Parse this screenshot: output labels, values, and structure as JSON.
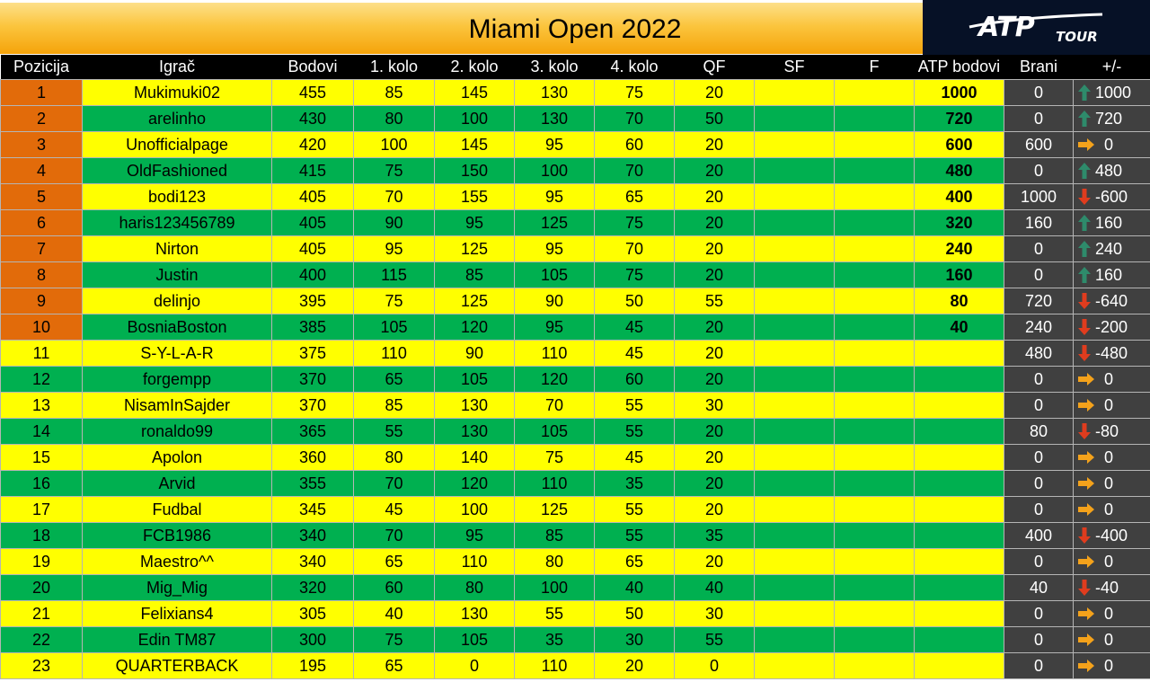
{
  "title": "Miami Open 2022",
  "logo": {
    "main": "ATP",
    "sub": "TOUR"
  },
  "headers": [
    "Pozicija",
    "Igrač",
    "Bodovi",
    "1. kolo",
    "2. kolo",
    "3. kolo",
    "4. kolo",
    "QF",
    "SF",
    "F",
    "ATP bodovi",
    "Brani",
    "+/-"
  ],
  "colors": {
    "yellow": "#ffff00",
    "green": "#00b050",
    "orange": "#e26b0a",
    "dark": "#404040",
    "header": "#000000",
    "arrow_up": "#2e8b6b",
    "arrow_down": "#e03c1e",
    "arrow_right": "#f4a21b"
  },
  "rows": [
    {
      "pos": "1",
      "player": "Mukimuki02",
      "bodovi": "455",
      "k1": "85",
      "k2": "145",
      "k3": "130",
      "k4": "75",
      "qf": "20",
      "sf": "",
      "f": "",
      "atp": "1000",
      "brani": "0",
      "diff": "1000",
      "trend": "up"
    },
    {
      "pos": "2",
      "player": "arelinho",
      "bodovi": "430",
      "k1": "80",
      "k2": "100",
      "k3": "130",
      "k4": "70",
      "qf": "50",
      "sf": "",
      "f": "",
      "atp": "720",
      "brani": "0",
      "diff": "720",
      "trend": "up"
    },
    {
      "pos": "3",
      "player": "Unofficialpage",
      "bodovi": "420",
      "k1": "100",
      "k2": "145",
      "k3": "95",
      "k4": "60",
      "qf": "20",
      "sf": "",
      "f": "",
      "atp": "600",
      "brani": "600",
      "diff": "0",
      "trend": "right"
    },
    {
      "pos": "4",
      "player": "OldFashioned",
      "bodovi": "415",
      "k1": "75",
      "k2": "150",
      "k3": "100",
      "k4": "70",
      "qf": "20",
      "sf": "",
      "f": "",
      "atp": "480",
      "brani": "0",
      "diff": "480",
      "trend": "up"
    },
    {
      "pos": "5",
      "player": "bodi123",
      "bodovi": "405",
      "k1": "70",
      "k2": "155",
      "k3": "95",
      "k4": "65",
      "qf": "20",
      "sf": "",
      "f": "",
      "atp": "400",
      "brani": "1000",
      "diff": "-600",
      "trend": "down"
    },
    {
      "pos": "6",
      "player": "haris123456789",
      "bodovi": "405",
      "k1": "90",
      "k2": "95",
      "k3": "125",
      "k4": "75",
      "qf": "20",
      "sf": "",
      "f": "",
      "atp": "320",
      "brani": "160",
      "diff": "160",
      "trend": "up"
    },
    {
      "pos": "7",
      "player": "Nirton",
      "bodovi": "405",
      "k1": "95",
      "k2": "125",
      "k3": "95",
      "k4": "70",
      "qf": "20",
      "sf": "",
      "f": "",
      "atp": "240",
      "brani": "0",
      "diff": "240",
      "trend": "up"
    },
    {
      "pos": "8",
      "player": "Justin",
      "bodovi": "400",
      "k1": "115",
      "k2": "85",
      "k3": "105",
      "k4": "75",
      "qf": "20",
      "sf": "",
      "f": "",
      "atp": "160",
      "brani": "0",
      "diff": "160",
      "trend": "up"
    },
    {
      "pos": "9",
      "player": "delinjo",
      "bodovi": "395",
      "k1": "75",
      "k2": "125",
      "k3": "90",
      "k4": "50",
      "qf": "55",
      "sf": "",
      "f": "",
      "atp": "80",
      "brani": "720",
      "diff": "-640",
      "trend": "down"
    },
    {
      "pos": "10",
      "player": "BosniaBoston",
      "bodovi": "385",
      "k1": "105",
      "k2": "120",
      "k3": "95",
      "k4": "45",
      "qf": "20",
      "sf": "",
      "f": "",
      "atp": "40",
      "brani": "240",
      "diff": "-200",
      "trend": "down"
    },
    {
      "pos": "11",
      "player": "S-Y-L-A-R",
      "bodovi": "375",
      "k1": "110",
      "k2": "90",
      "k3": "110",
      "k4": "45",
      "qf": "20",
      "sf": "",
      "f": "",
      "atp": "",
      "brani": "480",
      "diff": "-480",
      "trend": "down"
    },
    {
      "pos": "12",
      "player": "forgempp",
      "bodovi": "370",
      "k1": "65",
      "k2": "105",
      "k3": "120",
      "k4": "60",
      "qf": "20",
      "sf": "",
      "f": "",
      "atp": "",
      "brani": "0",
      "diff": "0",
      "trend": "right"
    },
    {
      "pos": "13",
      "player": "NisamInSajder",
      "bodovi": "370",
      "k1": "85",
      "k2": "130",
      "k3": "70",
      "k4": "55",
      "qf": "30",
      "sf": "",
      "f": "",
      "atp": "",
      "brani": "0",
      "diff": "0",
      "trend": "right"
    },
    {
      "pos": "14",
      "player": "ronaldo99",
      "bodovi": "365",
      "k1": "55",
      "k2": "130",
      "k3": "105",
      "k4": "55",
      "qf": "20",
      "sf": "",
      "f": "",
      "atp": "",
      "brani": "80",
      "diff": "-80",
      "trend": "down"
    },
    {
      "pos": "15",
      "player": "Apolon",
      "bodovi": "360",
      "k1": "80",
      "k2": "140",
      "k3": "75",
      "k4": "45",
      "qf": "20",
      "sf": "",
      "f": "",
      "atp": "",
      "brani": "0",
      "diff": "0",
      "trend": "right"
    },
    {
      "pos": "16",
      "player": "Arvid",
      "bodovi": "355",
      "k1": "70",
      "k2": "120",
      "k3": "110",
      "k4": "35",
      "qf": "20",
      "sf": "",
      "f": "",
      "atp": "",
      "brani": "0",
      "diff": "0",
      "trend": "right"
    },
    {
      "pos": "17",
      "player": "Fudbal",
      "bodovi": "345",
      "k1": "45",
      "k2": "100",
      "k3": "125",
      "k4": "55",
      "qf": "20",
      "sf": "",
      "f": "",
      "atp": "",
      "brani": "0",
      "diff": "0",
      "trend": "right"
    },
    {
      "pos": "18",
      "player": "FCB1986",
      "bodovi": "340",
      "k1": "70",
      "k2": "95",
      "k3": "85",
      "k4": "55",
      "qf": "35",
      "sf": "",
      "f": "",
      "atp": "",
      "brani": "400",
      "diff": "-400",
      "trend": "down"
    },
    {
      "pos": "19",
      "player": "Maestro^^",
      "bodovi": "340",
      "k1": "65",
      "k2": "110",
      "k3": "80",
      "k4": "65",
      "qf": "20",
      "sf": "",
      "f": "",
      "atp": "",
      "brani": "0",
      "diff": "0",
      "trend": "right"
    },
    {
      "pos": "20",
      "player": "Mig_Mig",
      "bodovi": "320",
      "k1": "60",
      "k2": "80",
      "k3": "100",
      "k4": "40",
      "qf": "40",
      "sf": "",
      "f": "",
      "atp": "",
      "brani": "40",
      "diff": "-40",
      "trend": "down"
    },
    {
      "pos": "21",
      "player": "Felixians4",
      "bodovi": "305",
      "k1": "40",
      "k2": "130",
      "k3": "55",
      "k4": "50",
      "qf": "30",
      "sf": "",
      "f": "",
      "atp": "",
      "brani": "0",
      "diff": "0",
      "trend": "right"
    },
    {
      "pos": "22",
      "player": "Edin TM87",
      "bodovi": "300",
      "k1": "75",
      "k2": "105",
      "k3": "35",
      "k4": "30",
      "qf": "55",
      "sf": "",
      "f": "",
      "atp": "",
      "brani": "0",
      "diff": "0",
      "trend": "right"
    },
    {
      "pos": "23",
      "player": "QUARTERBACK",
      "bodovi": "195",
      "k1": "65",
      "k2": "0",
      "k3": "110",
      "k4": "20",
      "qf": "0",
      "sf": "",
      "f": "",
      "atp": "",
      "brani": "0",
      "diff": "0",
      "trend": "right"
    }
  ]
}
